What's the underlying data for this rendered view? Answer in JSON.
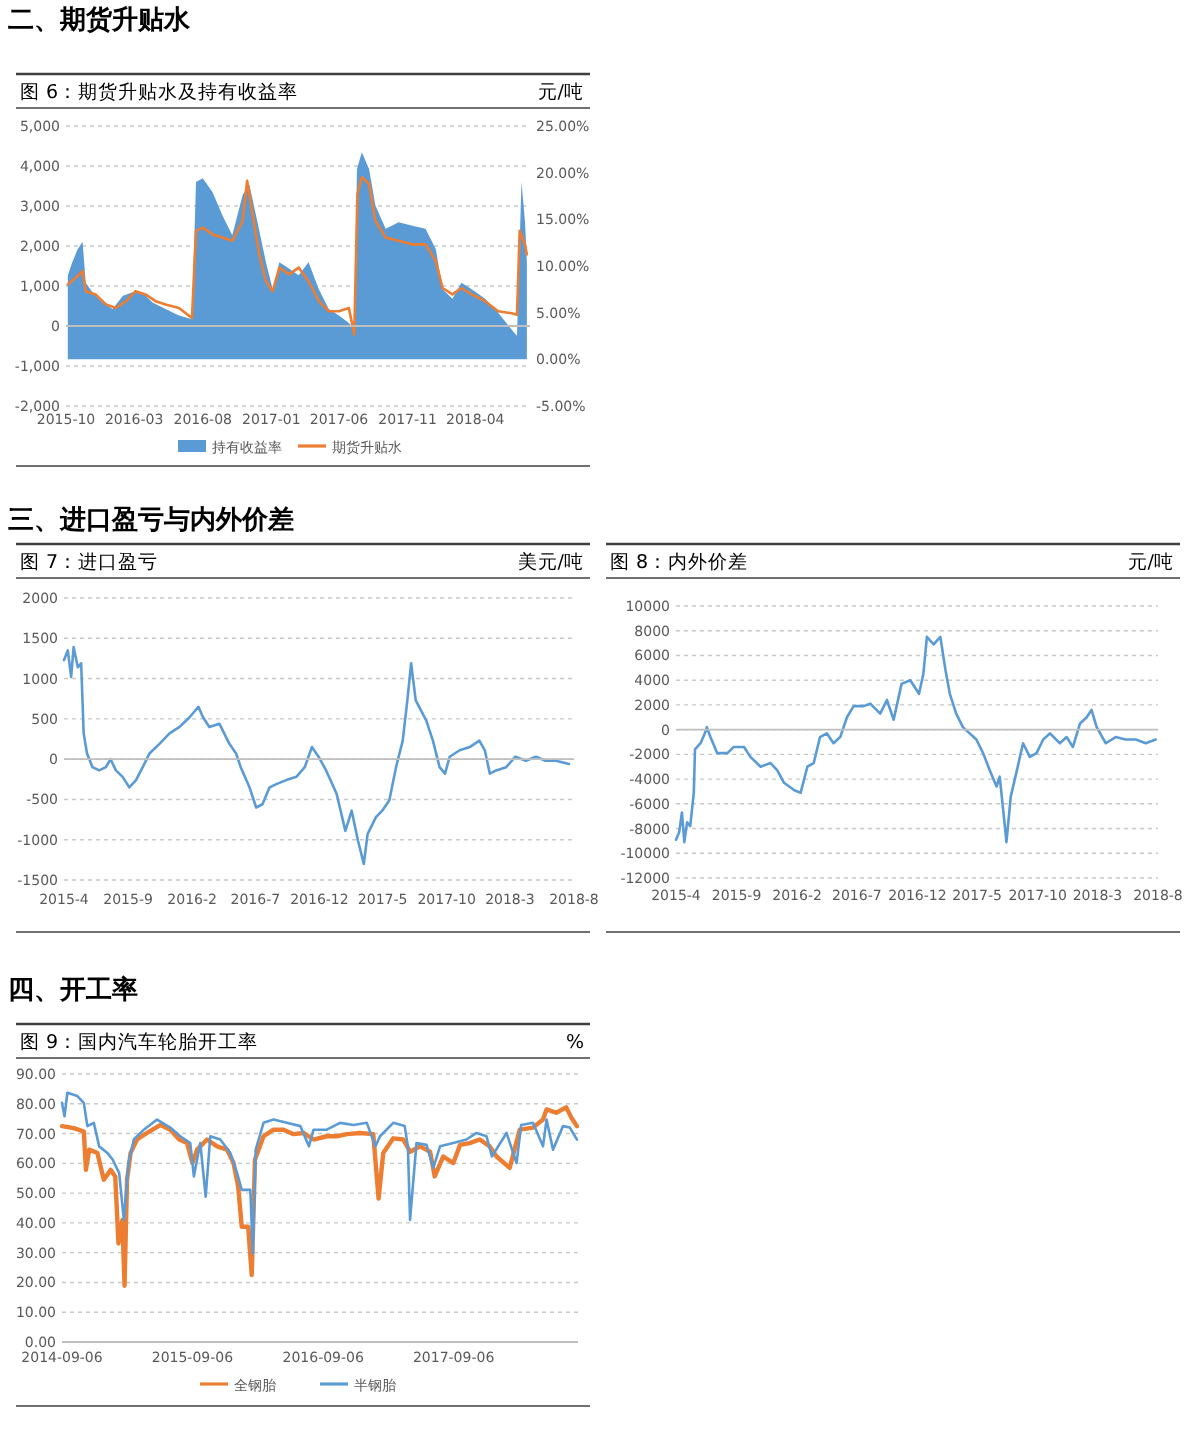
{
  "chart_data": [
    {
      "type": "line",
      "title": "图 6：期货升贴水及持有收益率",
      "subtitle": "元/吨",
      "annotations": [
        "二、期货升贴水"
      ],
      "xlim": [
        "2015-10-01",
        "2018-08-01"
      ],
      "xticks": [
        "2015-10",
        "2016-03",
        "2016-08",
        "2017-01",
        "2017-06",
        "2017-11",
        "2018-04"
      ],
      "ylim": [
        -2000,
        5000
      ],
      "yticks": [
        {
          "value": -2000,
          "label": "-2,000"
        },
        {
          "value": -1000,
          "label": "-1,000"
        },
        0,
        {
          "value": 1000,
          "label": "1,000"
        },
        {
          "value": 2000,
          "label": "2,000"
        },
        {
          "value": 3000,
          "label": "3,000"
        },
        {
          "value": 4000,
          "label": "4,000"
        },
        {
          "value": 5000,
          "label": "5,000"
        }
      ],
      "y2lim": [
        -5,
        25
      ],
      "y2ticks": [
        {
          "value": -5,
          "label": "-5.00%"
        },
        {
          "value": 0,
          "label": "0.00%"
        },
        {
          "value": 5,
          "label": "5.00%"
        },
        {
          "value": 10,
          "label": "10.00%"
        },
        {
          "value": 15,
          "label": "15.00%"
        },
        {
          "value": 20,
          "label": "20.00%"
        },
        {
          "value": 25,
          "label": "25.00%"
        }
      ],
      "grid": "y",
      "legend": "bottom",
      "series": [
        {
          "name": "持有收益率",
          "type": "area",
          "axis": "y2",
          "color": "#5b9bd5",
          "x": [
            "2015-10-05",
            "2015-10-15",
            "2015-10-27",
            "2015-11-07",
            "2015-11-14",
            "2015-11-29",
            "2015-12-21",
            "2016-01-13",
            "2016-02-05",
            "2016-02-27",
            "2016-03-19",
            "2016-04-11",
            "2016-05-10",
            "2016-06-09",
            "2016-07-08",
            "2016-07-17",
            "2016-08-01",
            "2016-08-23",
            "2016-09-14",
            "2016-10-06",
            "2016-10-29",
            "2016-11-13",
            "2016-11-28",
            "2016-12-20",
            "2017-01-04",
            "2017-01-19",
            "2017-02-10",
            "2017-03-03",
            "2017-03-25",
            "2017-04-17",
            "2017-05-09",
            "2017-06-01",
            "2017-06-23",
            "2017-07-05",
            "2017-07-11",
            "2017-07-22",
            "2017-08-07",
            "2017-08-21",
            "2017-09-13",
            "2017-10-12",
            "2017-11-12",
            "2017-12-11",
            "2018-01-03",
            "2018-01-18",
            "2018-02-09",
            "2018-03-01",
            "2018-03-24",
            "2018-04-23",
            "2018-05-22",
            "2018-06-21",
            "2018-07-03",
            "2018-07-13",
            "2018-07-21",
            "2018-07-25"
          ],
          "values": [
            9.0,
            10.4,
            11.8,
            12.6,
            8.2,
            7.2,
            6.1,
            5.4,
            6.8,
            7.2,
            7.2,
            6.1,
            5.4,
            4.7,
            4.3,
            19.0,
            19.4,
            17.9,
            15.4,
            13.3,
            17.6,
            18.7,
            15.4,
            10.4,
            7.5,
            10.4,
            9.7,
            9.0,
            10.4,
            7.5,
            5.4,
            4.7,
            3.9,
            3.2,
            20.4,
            22.2,
            20.4,
            16.5,
            14.0,
            14.7,
            14.3,
            14.0,
            11.8,
            7.5,
            6.5,
            8.2,
            7.5,
            6.5,
            5.0,
            3.2,
            2.5,
            19.0,
            14.7,
            10.4
          ]
        },
        {
          "name": "期货升贴水",
          "type": "line",
          "color": "#ed7d31",
          "x": [
            "2015-10-05",
            "2015-10-22",
            "2015-11-07",
            "2015-11-14",
            "2015-12-06",
            "2015-12-29",
            "2016-01-20",
            "2016-02-12",
            "2016-03-04",
            "2016-03-26",
            "2016-04-18",
            "2016-05-10",
            "2016-06-09",
            "2016-07-08",
            "2016-07-17",
            "2016-08-01",
            "2016-08-23",
            "2016-09-14",
            "2016-10-06",
            "2016-10-29",
            "2016-11-08",
            "2016-11-20",
            "2016-12-05",
            "2016-12-20",
            "2017-01-04",
            "2017-01-19",
            "2017-02-10",
            "2017-03-03",
            "2017-03-25",
            "2017-04-17",
            "2017-05-09",
            "2017-06-01",
            "2017-06-23",
            "2017-07-05",
            "2017-07-12",
            "2017-07-22",
            "2017-08-07",
            "2017-08-21",
            "2017-09-13",
            "2017-10-12",
            "2017-11-12",
            "2017-12-11",
            "2018-01-03",
            "2018-01-18",
            "2018-02-09",
            "2018-03-01",
            "2018-03-24",
            "2018-04-23",
            "2018-05-22",
            "2018-06-21",
            "2018-07-03",
            "2018-07-09",
            "2018-07-21",
            "2018-07-25"
          ],
          "values": [
            1040,
            1200,
            1370,
            870,
            790,
            540,
            450,
            620,
            870,
            790,
            620,
            540,
            450,
            200,
            2380,
            2460,
            2290,
            2210,
            2130,
            2630,
            3630,
            2800,
            1790,
            1120,
            870,
            1460,
            1290,
            1460,
            1120,
            620,
            370,
            370,
            450,
            -220,
            3300,
            3720,
            3550,
            2630,
            2210,
            2130,
            2040,
            2040,
            1620,
            950,
            790,
            950,
            790,
            620,
            370,
            320,
            280,
            2380,
            2040,
            1790
          ]
        }
      ]
    },
    {
      "type": "line",
      "title": "图 7：进口盈亏",
      "subtitle": "美元/吨",
      "annotations": [
        "三、进口盈亏与内外价差"
      ],
      "xlim": [
        "2015-04-01",
        "2018-08-01"
      ],
      "xticks": [
        {
          "value": "2015-04",
          "label": "2015-4"
        },
        {
          "value": "2015-09",
          "label": "2015-9"
        },
        {
          "value": "2016-02",
          "label": "2016-2"
        },
        {
          "value": "2016-07",
          "label": "2016-7"
        },
        {
          "value": "2016-12",
          "label": "2016-12"
        },
        {
          "value": "2017-05",
          "label": "2017-5"
        },
        {
          "value": "2017-10",
          "label": "2017-10"
        },
        {
          "value": "2018-03",
          "label": "2018-3"
        },
        {
          "value": "2018-08",
          "label": "2018-8"
        }
      ],
      "ylim": [
        -1500,
        2000
      ],
      "yticks": [
        -1500,
        -1000,
        -500,
        0,
        500,
        1000,
        1500,
        2000
      ],
      "grid": "y",
      "series": [
        {
          "color": "#5b9bd5",
          "x": [
            "2015-04-01",
            "2015-04-10",
            "2015-04-18",
            "2015-04-24",
            "2015-05-04",
            "2015-05-12",
            "2015-05-18",
            "2015-05-26",
            "2015-06-08",
            "2015-06-24",
            "2015-07-10",
            "2015-07-21",
            "2015-08-03",
            "2015-08-19",
            "2015-09-04",
            "2015-09-20",
            "2015-10-06",
            "2015-10-22",
            "2015-11-15",
            "2015-12-09",
            "2016-01-02",
            "2016-01-26",
            "2016-02-16",
            "2016-02-27",
            "2016-03-13",
            "2016-04-06",
            "2016-04-30",
            "2016-05-16",
            "2016-05-27",
            "2016-06-17",
            "2016-07-03",
            "2016-07-18",
            "2016-08-04",
            "2016-08-20",
            "2016-09-13",
            "2016-10-07",
            "2016-10-27",
            "2016-11-13",
            "2016-11-29",
            "2016-12-17",
            "2017-01-11",
            "2017-02-01",
            "2017-02-16",
            "2017-03-03",
            "2017-03-17",
            "2017-03-26",
            "2017-04-15",
            "2017-04-30",
            "2017-05-17",
            "2017-06-02",
            "2017-06-18",
            "2017-06-29",
            "2017-07-08",
            "2017-07-19",
            "2017-08-13",
            "2017-08-29",
            "2017-09-14",
            "2017-09-27",
            "2017-10-08",
            "2017-11-01",
            "2017-11-25",
            "2017-12-18",
            "2017-12-31",
            "2018-01-12",
            "2018-01-27",
            "2018-02-20",
            "2018-03-14",
            "2018-04-08",
            "2018-05-02",
            "2018-05-25",
            "2018-06-19",
            "2018-07-20"
          ],
          "values": [
            1230,
            1350,
            1020,
            1390,
            1140,
            1190,
            320,
            70,
            -100,
            -140,
            -100,
            0,
            -140,
            -220,
            -350,
            -260,
            -100,
            70,
            190,
            320,
            400,
            520,
            650,
            520,
            400,
            440,
            190,
            70,
            -100,
            -350,
            -600,
            -560,
            -350,
            -310,
            -260,
            -220,
            -100,
            150,
            30,
            -140,
            -430,
            -890,
            -640,
            -1010,
            -1300,
            -930,
            -720,
            -640,
            -510,
            -100,
            230,
            730,
            1190,
            730,
            480,
            230,
            -100,
            -180,
            30,
            110,
            150,
            230,
            110,
            -180,
            -140,
            -100,
            30,
            -20,
            30,
            -20,
            -20,
            -60
          ]
        }
      ]
    },
    {
      "type": "line",
      "title": "图 8：内外价差",
      "subtitle": "元/吨",
      "xlim": [
        "2015-04-01",
        "2018-08-01"
      ],
      "xticks": [
        {
          "value": "2015-04",
          "label": "2015-4"
        },
        {
          "value": "2015-09",
          "label": "2015-9"
        },
        {
          "value": "2016-02",
          "label": "2016-2"
        },
        {
          "value": "2016-07",
          "label": "2016-7"
        },
        {
          "value": "2016-12",
          "label": "2016-12"
        },
        {
          "value": "2017-05",
          "label": "2017-5"
        },
        {
          "value": "2017-10",
          "label": "2017-10"
        },
        {
          "value": "2018-03",
          "label": "2018-3"
        },
        {
          "value": "2018-08",
          "label": "2018-8"
        }
      ],
      "ylim": [
        -12000,
        10000
      ],
      "yticks": [
        -12000,
        -10000,
        -8000,
        -6000,
        -4000,
        -2000,
        0,
        2000,
        4000,
        6000,
        8000,
        10000
      ],
      "grid": "y",
      "series": [
        {
          "color": "#5b9bd5",
          "x": [
            "2015-04-01",
            "2015-04-09",
            "2015-04-16",
            "2015-04-22",
            "2015-04-29",
            "2015-05-07",
            "2015-05-16",
            "2015-05-19",
            "2015-06-02",
            "2015-06-13",
            "2015-06-18",
            "2015-06-27",
            "2015-07-14",
            "2015-08-09",
            "2015-08-25",
            "2015-09-20",
            "2015-10-06",
            "2015-11-01",
            "2015-11-26",
            "2015-12-13",
            "2015-12-30",
            "2016-01-25",
            "2016-02-10",
            "2016-02-27",
            "2016-03-14",
            "2016-03-30",
            "2016-04-16",
            "2016-05-03",
            "2016-05-20",
            "2016-06-06",
            "2016-06-23",
            "2016-07-18",
            "2016-08-04",
            "2016-08-29",
            "2016-09-15",
            "2016-10-02",
            "2016-10-22",
            "2016-11-13",
            "2016-12-05",
            "2016-12-16",
            "2016-12-25",
            "2017-01-11",
            "2017-01-28",
            "2017-02-10",
            "2017-02-21",
            "2017-03-09",
            "2017-03-26",
            "2017-04-12",
            "2017-04-29",
            "2017-05-16",
            "2017-06-02",
            "2017-06-19",
            "2017-06-27",
            "2017-07-09",
            "2017-07-14",
            "2017-07-25",
            "2017-08-08",
            "2017-08-25",
            "2017-09-11",
            "2017-09-28",
            "2017-10-15",
            "2017-11-01",
            "2017-11-26",
            "2017-12-13",
            "2017-12-29",
            "2018-01-16",
            "2018-02-02",
            "2018-02-14",
            "2018-02-27",
            "2018-03-22",
            "2018-04-16",
            "2018-05-11",
            "2018-06-06",
            "2018-07-01",
            "2018-07-26"
          ],
          "values": [
            -8900,
            -8300,
            -6700,
            -9100,
            -7500,
            -7800,
            -5100,
            -1600,
            -1100,
            -300,
            200,
            -600,
            -1900,
            -1900,
            -1400,
            -1400,
            -2200,
            -3000,
            -2700,
            -3300,
            -4300,
            -4900,
            -5100,
            -3000,
            -2700,
            -600,
            -300,
            -1100,
            -600,
            1000,
            1900,
            1900,
            2100,
            1300,
            2400,
            800,
            3700,
            4000,
            2900,
            4500,
            7500,
            6900,
            7500,
            4800,
            2900,
            1300,
            200,
            -300,
            -800,
            -1900,
            -3300,
            -4600,
            -3800,
            -7500,
            -9100,
            -5400,
            -3500,
            -1100,
            -2200,
            -1900,
            -800,
            -300,
            -1100,
            -600,
            -1400,
            500,
            1000,
            1600,
            200,
            -1100,
            -600,
            -800,
            -800,
            -1100,
            -800
          ]
        }
      ]
    },
    {
      "type": "line",
      "title": "图 9：国内汽车轮胎开工率",
      "subtitle": "%",
      "annotations": [
        "四、开工率"
      ],
      "xlim": [
        "2014-09-06",
        "2018-08-20"
      ],
      "xticks": [
        "2014-09-06",
        "2015-09-06",
        "2016-09-06",
        "2017-09-06"
      ],
      "ylim": [
        0,
        90
      ],
      "yticks": [
        {
          "value": 0,
          "label": "0.00"
        },
        {
          "value": 10,
          "label": "10.00"
        },
        {
          "value": 20,
          "label": "20.00"
        },
        {
          "value": 30,
          "label": "30.00"
        },
        {
          "value": 40,
          "label": "40.00"
        },
        {
          "value": 50,
          "label": "50.00"
        },
        {
          "value": 60,
          "label": "60.00"
        },
        {
          "value": 70,
          "label": "70.00"
        },
        {
          "value": 80,
          "label": "80.00"
        },
        {
          "value": 90,
          "label": "90.00"
        }
      ],
      "grid": "y",
      "legend": "bottom",
      "series": [
        {
          "name": "全钢胎",
          "color": "#ed7d31",
          "x": [
            "2014-09-06",
            "2014-10-09",
            "2014-11-06",
            "2014-11-12",
            "2014-11-21",
            "2014-12-14",
            "2015-01-01",
            "2015-01-20",
            "2015-02-02",
            "2015-02-11",
            "2015-02-22",
            "2015-02-28",
            "2015-03-07",
            "2015-03-17",
            "2015-04-04",
            "2015-05-02",
            "2015-06-09",
            "2015-07-06",
            "2015-07-31",
            "2015-08-22",
            "2015-09-06",
            "2015-09-19",
            "2015-10-17",
            "2015-11-14",
            "2015-12-12",
            "2015-12-30",
            "2016-01-12",
            "2016-01-22",
            "2016-02-09",
            "2016-02-19",
            "2016-02-28",
            "2016-03-23",
            "2016-04-20",
            "2016-05-18",
            "2016-06-15",
            "2016-07-13",
            "2016-08-10",
            "2016-09-16",
            "2016-10-14",
            "2016-11-11",
            "2016-12-18",
            "2017-01-24",
            "2017-02-08",
            "2017-02-21",
            "2017-03-21",
            "2017-04-18",
            "2017-05-07",
            "2017-06-04",
            "2017-07-02",
            "2017-07-15",
            "2017-08-08",
            "2017-09-05",
            "2017-09-24",
            "2017-10-21",
            "2017-11-18",
            "2017-12-16",
            "2018-01-04",
            "2018-02-10",
            "2018-03-10",
            "2018-04-16",
            "2018-05-14",
            "2018-05-24",
            "2018-06-20",
            "2018-07-18",
            "2018-08-02",
            "2018-08-17"
          ],
          "values": [
            72.5,
            71.8,
            70.7,
            57.8,
            64.6,
            63.5,
            54.5,
            57.8,
            55.6,
            33.1,
            41,
            18.9,
            54.5,
            63.5,
            68,
            70.2,
            72.9,
            71.3,
            68,
            66.8,
            60.1,
            64.6,
            68,
            65.7,
            64.6,
            60.1,
            52.2,
            38.7,
            38.7,
            22.5,
            61.2,
            69.1,
            71.3,
            71.3,
            69.8,
            70.2,
            68,
            69.1,
            69.1,
            69.8,
            70.2,
            69.8,
            48.2,
            63.5,
            68.4,
            68,
            63.9,
            65.7,
            63.9,
            55.6,
            62.3,
            60.1,
            66.2,
            66.8,
            68,
            65.7,
            62.3,
            58.5,
            71.3,
            72,
            74.7,
            78.1,
            77,
            78.8,
            75.2,
            72.5
          ]
        },
        {
          "name": "半钢胎",
          "color": "#5b9bd5",
          "x": [
            "2014-09-06",
            "2014-09-13",
            "2014-09-21",
            "2014-10-19",
            "2014-11-06",
            "2014-11-16",
            "2014-12-04",
            "2014-12-19",
            "2015-01-11",
            "2015-01-26",
            "2015-02-13",
            "2015-02-26",
            "2015-03-11",
            "2015-03-26",
            "2015-04-23",
            "2015-05-30",
            "2015-07-06",
            "2015-08-03",
            "2015-08-31",
            "2015-09-10",
            "2015-09-28",
            "2015-10-13",
            "2015-10-26",
            "2015-11-23",
            "2015-12-21",
            "2016-01-09",
            "2016-01-22",
            "2016-02-15",
            "2016-02-22",
            "2016-03-01",
            "2016-03-23",
            "2016-04-20",
            "2016-05-27",
            "2016-07-04",
            "2016-07-28",
            "2016-08-10",
            "2016-09-16",
            "2016-10-23",
            "2016-11-30",
            "2017-01-06",
            "2017-01-30",
            "2017-02-12",
            "2017-03-21",
            "2017-04-22",
            "2017-05-01",
            "2017-05-07",
            "2017-05-25",
            "2017-06-22",
            "2017-07-11",
            "2017-07-30",
            "2017-09-05",
            "2017-10-12",
            "2017-11-09",
            "2017-12-07",
            "2017-12-22",
            "2018-02-01",
            "2018-03-01",
            "2018-03-14",
            "2018-04-16",
            "2018-05-14",
            "2018-05-24",
            "2018-06-11",
            "2018-07-09",
            "2018-07-28",
            "2018-08-17"
          ],
          "values": [
            80.3,
            75.8,
            83.7,
            82.6,
            80.3,
            72.5,
            73.6,
            65.7,
            63.5,
            61.2,
            56.7,
            41,
            60.1,
            68,
            71.3,
            74.7,
            72,
            69.1,
            66.8,
            55.6,
            66.8,
            48.8,
            69.1,
            68,
            63.5,
            56.7,
            51.1,
            51.1,
            29.7,
            64.6,
            73.6,
            74.7,
            73.6,
            72.5,
            65.7,
            71.3,
            71.3,
            73.6,
            72.9,
            73.6,
            65.7,
            69.1,
            73.6,
            72.5,
            65.7,
            41,
            66.8,
            66.2,
            58.5,
            65.7,
            66.8,
            68,
            70.2,
            69.1,
            62.3,
            70.2,
            60.1,
            72.9,
            73.6,
            65.7,
            74.7,
            64.6,
            72.5,
            72,
            68
          ]
        }
      ]
    }
  ]
}
